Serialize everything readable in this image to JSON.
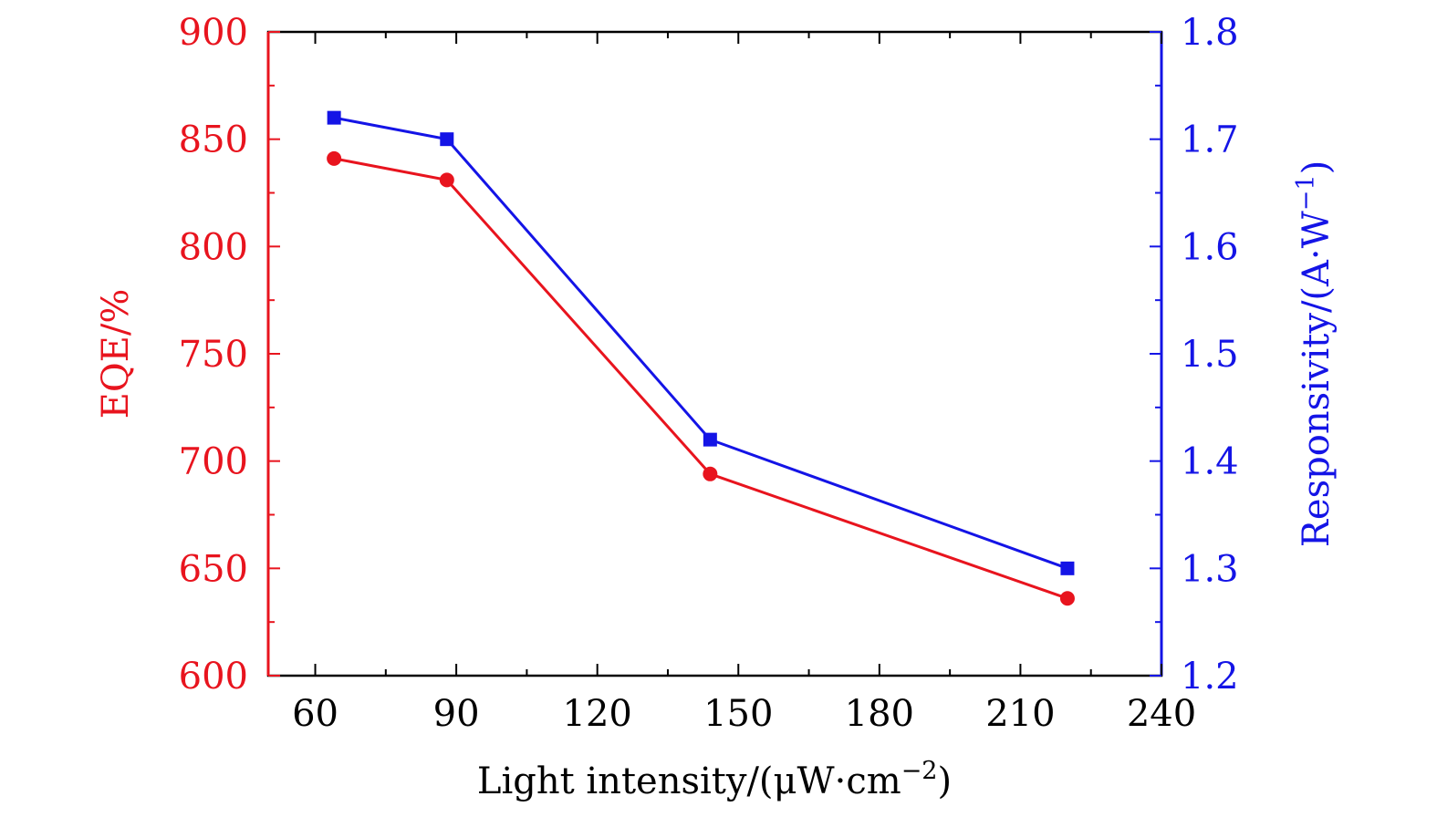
{
  "chart_data": {
    "type": "line",
    "xlabel": "Light intensity/(μW·cm",
    "xlabel_sup": "−2",
    "xlabel_end": ")",
    "ylabel_left": "EQE/%",
    "ylabel_right": "Responsivity/(A·W",
    "ylabel_right_sup": "−1",
    "ylabel_right_end": ")",
    "xlim": [
      50,
      240
    ],
    "xticks": [
      "60",
      "90",
      "120",
      "150",
      "180",
      "210",
      "240"
    ],
    "ylim_left": [
      600,
      900
    ],
    "yticks_left": [
      "600",
      "650",
      "700",
      "750",
      "800",
      "850",
      "900"
    ],
    "ylim_right": [
      1.2,
      1.8
    ],
    "yticks_right": [
      "1.2",
      "1.3",
      "1.4",
      "1.5",
      "1.6",
      "1.7",
      "1.8"
    ],
    "grid": false,
    "legend": "none",
    "colors": {
      "left": "#e8141e",
      "right": "#1414e6"
    },
    "series": [
      {
        "axis": "left",
        "marker": "circle",
        "x": [
          64,
          88,
          144,
          220
        ],
        "y": [
          841,
          831,
          694,
          636
        ]
      },
      {
        "axis": "right",
        "marker": "square",
        "x": [
          64,
          88,
          144,
          220
        ],
        "y": [
          1.72,
          1.7,
          1.42,
          1.3
        ]
      }
    ]
  }
}
